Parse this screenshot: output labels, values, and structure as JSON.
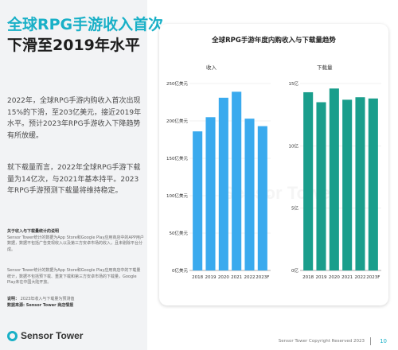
{
  "headline": {
    "line1": "全球RPG手游收入首次",
    "line2": "下滑至2019年水平"
  },
  "paragraphs": [
    "2022年，全球RPG手游内购收入首次出现15%的下滑，至203亿美元，接近2019年水平。预计2023年RPG手游收入下降趋势有所放缓。",
    "就下载量而言，2022年全球RPG手游下载量为14亿次，与2021年基本持平。2023年RPG手游预测下载量将维持稳定。"
  ],
  "notes": {
    "title": "关于收入与下载量统计的说明",
    "body1": "Sensor Tower统计的数据为App Store和Google Play应用商店中的APP用户数据，数据不包括广告变现收入以及第三方安卓市场的收入，且未剔除平台分成。",
    "body2": "Sensor Tower统计的数据为App Store和Google Play应用商店中的下载量统计，数据不包括预下载、重复下载和第三方安卓市场的下载量，Google Play未在中国大陆开放。",
    "label": "说明：",
    "label_text": "2023年收入与下载量为预测值",
    "source": "数据来源: Sensor Tower 商店情报"
  },
  "brand": {
    "name": "Sensor Tower"
  },
  "footer": {
    "copyright": "Sensor Tower Copyright Reserved 2023",
    "page": "10"
  },
  "colors": {
    "revenue_bar": "#3aaaee",
    "downloads_bar": "#1a9e8c",
    "accent": "#19b0c7"
  },
  "chart_data": [
    {
      "type": "bar",
      "title": "全球RPG手游年度内购收入与下载量趋势",
      "subtitle": "收入",
      "categories": [
        "2018",
        "2019",
        "2020",
        "2021",
        "2022",
        "2023F"
      ],
      "values": [
        186,
        205,
        231,
        239,
        203,
        193
      ],
      "yticks": [
        "0亿美元",
        "50亿美元",
        "100亿美元",
        "150亿美元",
        "200亿美元",
        "250亿美元"
      ],
      "ylim": [
        0,
        250
      ],
      "grid": true
    },
    {
      "type": "bar",
      "title": "全球RPG手游年度内购收入与下载量趋势",
      "subtitle": "下载量",
      "categories": [
        "2018",
        "2019",
        "2020",
        "2021",
        "2022",
        "2023F"
      ],
      "values": [
        14.3,
        13.5,
        14.6,
        13.7,
        13.9,
        13.8
      ],
      "yticks": [
        "0亿",
        "5亿",
        "10亿",
        "15亿"
      ],
      "ylim": [
        0,
        15
      ],
      "grid": true
    }
  ]
}
